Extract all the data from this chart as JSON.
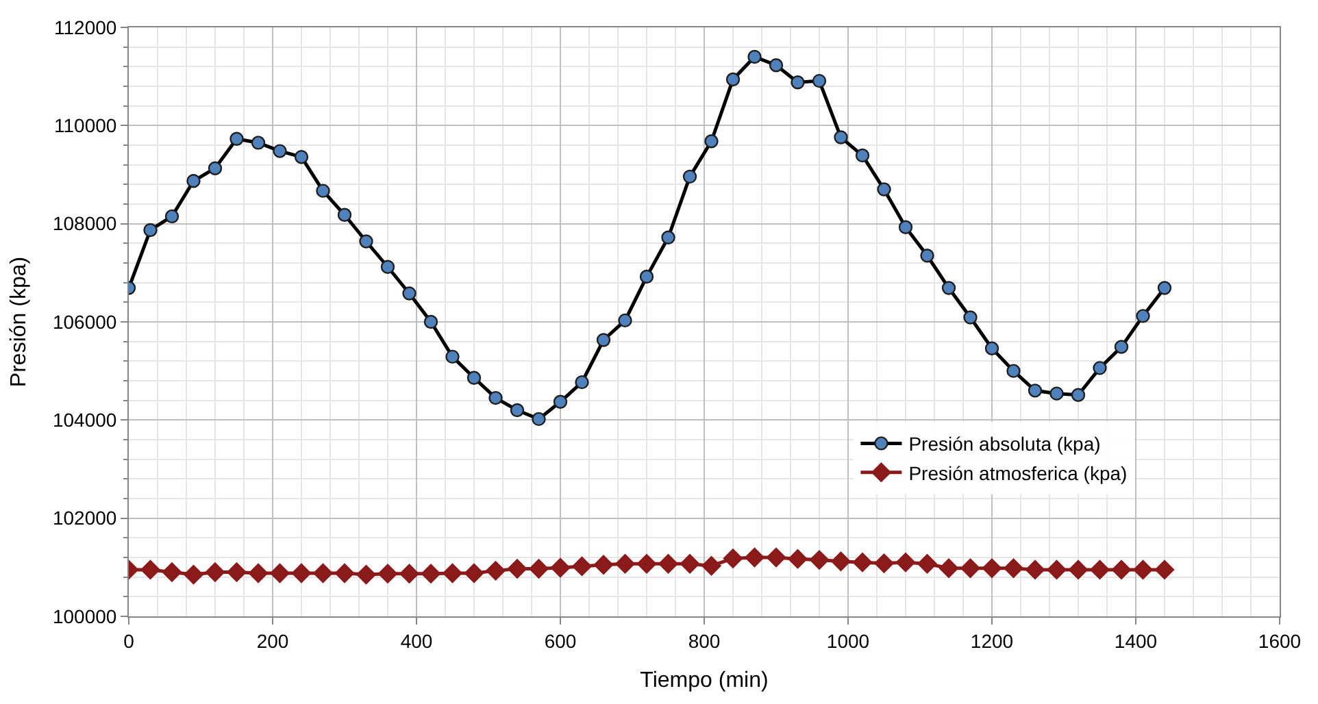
{
  "chart_data": {
    "type": "line",
    "xlabel": "Tiempo (min)",
    "ylabel": "Presión (kpa)",
    "x": [
      0,
      30,
      60,
      90,
      120,
      150,
      180,
      210,
      240,
      270,
      300,
      330,
      360,
      390,
      420,
      450,
      480,
      510,
      540,
      570,
      600,
      630,
      660,
      690,
      720,
      750,
      780,
      810,
      840,
      870,
      900,
      930,
      960,
      990,
      1020,
      1050,
      1080,
      1110,
      1140,
      1170,
      1200,
      1230,
      1260,
      1290,
      1320,
      1350,
      1380,
      1410,
      1440
    ],
    "series": [
      {
        "name": "Presión absoluta (kpa)",
        "color": "#4f81bd",
        "marker": "circle",
        "values": [
          106690,
          107870,
          108150,
          108870,
          109130,
          109730,
          109650,
          109480,
          109360,
          108670,
          108180,
          107640,
          107120,
          106580,
          106000,
          105290,
          104860,
          104450,
          104200,
          104020,
          104370,
          104770,
          105630,
          106030,
          106920,
          107720,
          108960,
          109680,
          110940,
          111400,
          111230,
          110880,
          110910,
          109760,
          109390,
          108700,
          107930,
          107350,
          106690,
          106090,
          105460,
          105000,
          104600,
          104540,
          104510,
          105060,
          105490,
          106120,
          106690
        ]
      },
      {
        "name": "Presión atmosferica (kpa)",
        "color": "#8b1a1a",
        "marker": "diamond",
        "values": [
          100950,
          100950,
          100900,
          100850,
          100900,
          100900,
          100880,
          100880,
          100880,
          100880,
          100880,
          100850,
          100870,
          100870,
          100870,
          100880,
          100880,
          100930,
          100970,
          100970,
          100990,
          101020,
          101050,
          101070,
          101070,
          101070,
          101070,
          101030,
          101180,
          101200,
          101200,
          101170,
          101150,
          101120,
          101100,
          101080,
          101100,
          101070,
          100980,
          100980,
          100980,
          100980,
          100950,
          100950,
          100950,
          100950,
          100950,
          100950,
          100950
        ]
      }
    ],
    "xlim": [
      0,
      1600
    ],
    "xticks": [
      0,
      200,
      400,
      600,
      800,
      1000,
      1200,
      1400,
      1600
    ],
    "ylim": [
      100000,
      112000
    ],
    "yticks": [
      100000,
      102000,
      104000,
      106000,
      108000,
      110000,
      112000
    ],
    "grid": true,
    "legend": "bottom right",
    "line_style": "solid"
  }
}
